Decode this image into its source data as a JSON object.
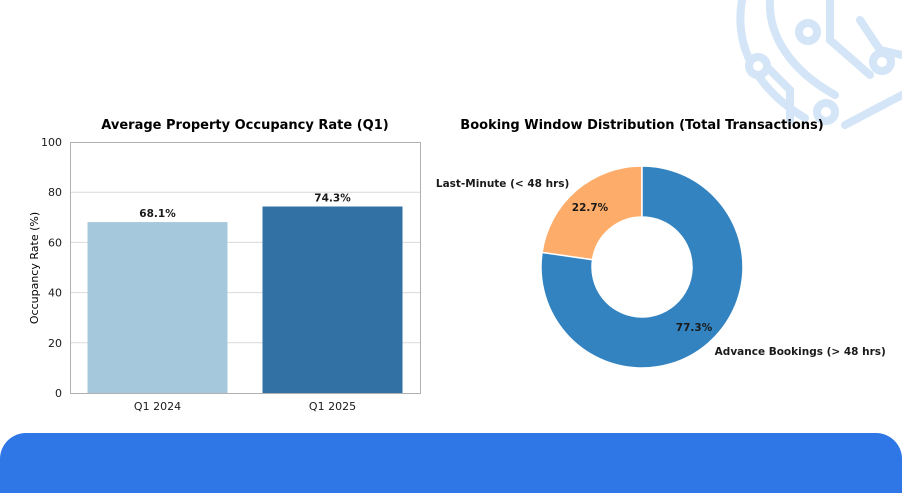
{
  "colors": {
    "background": "#ffffff",
    "footer_band": "#2f76e6",
    "decor": "#d3e5f7",
    "text": "#1a1a1a",
    "grid": "#d9d9d9",
    "axis": "#b0b0b0"
  },
  "decor": {
    "icon": "circuit-pattern-icon"
  },
  "chart_data": [
    {
      "type": "bar",
      "title": "Average Property Occupancy Rate (Q1)",
      "xlabel": "",
      "ylabel": "Occupancy Rate (%)",
      "categories": [
        "Q1 2024",
        "Q1 2025"
      ],
      "values": [
        68.1,
        74.3
      ],
      "data_labels": [
        "68.1%",
        "74.3%"
      ],
      "bar_colors": [
        "#a6c8dd",
        "#3271a3"
      ],
      "ylim": [
        0,
        100
      ],
      "yticks": [
        0,
        20,
        40,
        60,
        80,
        100
      ],
      "ytick_labels": [
        "0",
        "20",
        "40",
        "60",
        "80",
        "100"
      ],
      "grid": true,
      "legend": "none"
    },
    {
      "type": "pie",
      "title": "Booking Window Distribution (Total Transactions)",
      "donut": true,
      "labels": [
        "Last-Minute (< 48 hrs)",
        "Advance Bookings (> 48 hrs)"
      ],
      "values": [
        22.7,
        77.3
      ],
      "pct_labels": [
        "22.7%",
        "77.3%"
      ],
      "colors": [
        "#fdad69",
        "#3283c0"
      ],
      "legend": "none"
    }
  ]
}
